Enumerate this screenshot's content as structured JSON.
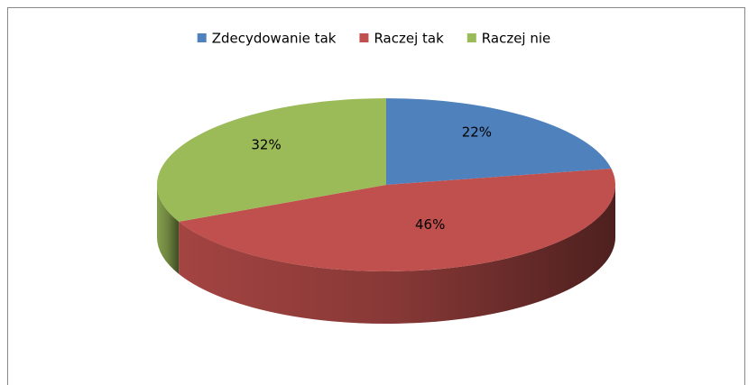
{
  "chart_data": {
    "type": "pie3d",
    "categories": [
      "Zdecydowanie tak",
      "Raczej tak",
      "Raczej nie"
    ],
    "values": [
      22,
      46,
      32
    ],
    "value_labels": [
      "22%",
      "46%",
      "32%"
    ],
    "colors": [
      "#4f81bd",
      "#c0504d",
      "#9bbb59"
    ],
    "legend": "top"
  }
}
